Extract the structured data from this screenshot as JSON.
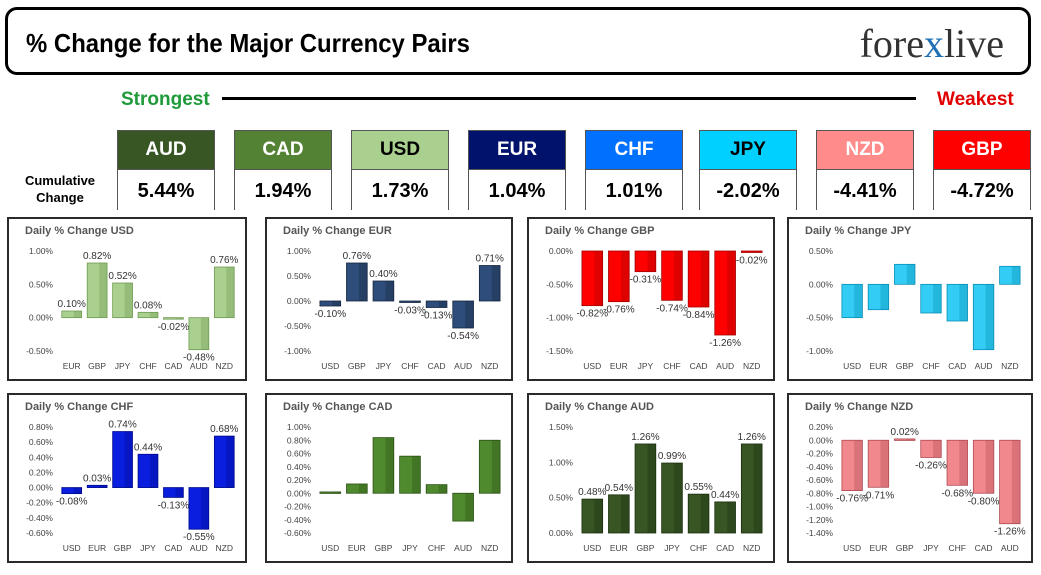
{
  "title": "% Change for the Major Currency Pairs",
  "logo": {
    "left": "fore",
    "x": "x",
    "right": "live"
  },
  "strength_scale": {
    "strongest": "Strongest",
    "weakest": "Weakest"
  },
  "cumulative_label": [
    "Cumulative",
    "Change"
  ],
  "currencies": [
    {
      "name": "AUD",
      "value": "5.44%",
      "color": "#375623",
      "text_color": "#ffffff"
    },
    {
      "name": "CAD",
      "value": "1.94%",
      "color": "#548235",
      "text_color": "#ffffff"
    },
    {
      "name": "USD",
      "value": "1.73%",
      "color": "#a9d08e",
      "text_color": "#000000"
    },
    {
      "name": "EUR",
      "value": "1.04%",
      "color": "#00126b",
      "text_color": "#ffffff"
    },
    {
      "name": "CHF",
      "value": "1.01%",
      "color": "#0070ff",
      "text_color": "#ffffff"
    },
    {
      "name": "JPY",
      "value": "-2.02%",
      "color": "#00d0ff",
      "text_color": "#000000"
    },
    {
      "name": "NZD",
      "value": "-4.41%",
      "color": "#ff8b8b",
      "text_color": "#ffffff"
    },
    {
      "name": "GBP",
      "value": "-4.72%",
      "color": "#ff0000",
      "text_color": "#ffffff"
    }
  ],
  "chart_data": [
    {
      "type": "bar",
      "title": "Daily % Change USD",
      "categories": [
        "EUR",
        "GBP",
        "JPY",
        "CHF",
        "CAD",
        "AUD",
        "NZD"
      ],
      "values": [
        0.1,
        0.82,
        0.52,
        0.08,
        -0.02,
        -0.48,
        0.76
      ],
      "labels": [
        "0.10%",
        "0.82%",
        "0.52%",
        "0.08%",
        "-0.02%",
        "-0.48%",
        "0.76%"
      ],
      "yticks": [
        1.0,
        0.5,
        0.0,
        -0.5
      ],
      "ytick_labels": [
        "1.00%",
        "0.50%",
        "0.00%",
        "-0.50%"
      ],
      "ylim": [
        -0.5,
        1.0
      ],
      "color": "#a9d08e",
      "color_dark": "#6f9a52",
      "data_labels": true
    },
    {
      "type": "bar",
      "title": "Daily % Change EUR",
      "categories": [
        "USD",
        "GBP",
        "JPY",
        "CHF",
        "CAD",
        "AUD",
        "NZD"
      ],
      "values": [
        -0.1,
        0.76,
        0.4,
        -0.03,
        -0.13,
        -0.54,
        0.71
      ],
      "labels": [
        "-0.10%",
        "0.76%",
        "0.40%",
        "-0.03%",
        "-0.13%",
        "-0.54%",
        "0.71%"
      ],
      "yticks": [
        1.0,
        0.5,
        0.0,
        -0.5,
        -1.0
      ],
      "ytick_labels": [
        "1.00%",
        "0.50%",
        "0.00%",
        "-0.50%",
        "-1.00%"
      ],
      "ylim": [
        -1.0,
        1.0
      ],
      "color": "#2e4d7a",
      "color_dark": "#142640",
      "data_labels": true
    },
    {
      "type": "bar",
      "title": "Daily % Change GBP",
      "categories": [
        "USD",
        "EUR",
        "JPY",
        "CHF",
        "CAD",
        "AUD",
        "NZD"
      ],
      "values": [
        -0.82,
        -0.76,
        -0.31,
        -0.74,
        -0.84,
        -1.26,
        -0.02
      ],
      "labels": [
        "-0.82%",
        "-0.76%",
        "-0.31%",
        "-0.74%",
        "-0.84%",
        "-1.26%",
        "-0.02%"
      ],
      "yticks": [
        0.0,
        -0.5,
        -1.0,
        -1.5
      ],
      "ytick_labels": [
        "0.00%",
        "-0.50%",
        "-1.00%",
        "-1.50%"
      ],
      "ylim": [
        -1.5,
        0.0
      ],
      "color": "#ff0000",
      "color_dark": "#a30000",
      "data_labels": true
    },
    {
      "type": "bar",
      "title": "Daily % Change JPY",
      "categories": [
        "USD",
        "EUR",
        "GBP",
        "CHF",
        "CAD",
        "AUD",
        "NZD"
      ],
      "values": [
        -0.5,
        -0.38,
        0.3,
        -0.43,
        -0.55,
        -0.98,
        0.27
      ],
      "labels": [],
      "yticks": [
        0.5,
        0.0,
        -0.5,
        -1.0
      ],
      "ytick_labels": [
        "0.50%",
        "0.00%",
        "-0.50%",
        "-1.00%"
      ],
      "ylim": [
        -1.0,
        0.5
      ],
      "color": "#33ccf5",
      "color_dark": "#0a8fb5",
      "data_labels": false
    },
    {
      "type": "bar",
      "title": "Daily % Change CHF",
      "categories": [
        "USD",
        "EUR",
        "GBP",
        "JPY",
        "CAD",
        "AUD",
        "NZD"
      ],
      "values": [
        -0.08,
        0.03,
        0.74,
        0.44,
        -0.13,
        -0.55,
        0.68
      ],
      "labels": [
        "-0.08%",
        "0.03%",
        "0.74%",
        "0.44%",
        "-0.13%",
        "-0.55%",
        "0.68%"
      ],
      "yticks": [
        0.8,
        0.6,
        0.4,
        0.2,
        0.0,
        -0.2,
        -0.4,
        -0.6
      ],
      "ytick_labels": [
        "0.80%",
        "0.60%",
        "0.40%",
        "0.20%",
        "0.00%",
        "-0.20%",
        "-0.40%",
        "-0.60%"
      ],
      "ylim": [
        -0.6,
        0.8
      ],
      "color": "#0a1ee0",
      "color_dark": "#000a8a",
      "data_labels": true
    },
    {
      "type": "bar",
      "title": "Daily % Change CAD",
      "categories": [
        "USD",
        "EUR",
        "GBP",
        "JPY",
        "CHF",
        "AUD",
        "NZD"
      ],
      "values": [
        0.02,
        0.14,
        0.84,
        0.56,
        0.13,
        -0.42,
        0.8
      ],
      "labels": [],
      "yticks": [
        1.0,
        0.8,
        0.6,
        0.4,
        0.2,
        0.0,
        -0.2,
        -0.4,
        -0.6
      ],
      "ytick_labels": [
        "1.00%",
        "0.80%",
        "0.60%",
        "0.40%",
        "0.20%",
        "0.00%",
        "-0.20%",
        "-0.40%",
        "-0.60%"
      ],
      "ylim": [
        -0.6,
        1.0
      ],
      "color": "#4f8a2f",
      "color_dark": "#2a5014",
      "data_labels": false
    },
    {
      "type": "bar",
      "title": "Daily % Change AUD",
      "categories": [
        "USD",
        "EUR",
        "GBP",
        "JPY",
        "CHF",
        "CAD",
        "NZD"
      ],
      "values": [
        0.48,
        0.54,
        1.26,
        0.99,
        0.55,
        0.44,
        1.26
      ],
      "labels": [
        "0.48%",
        "0.54%",
        "1.26%",
        "0.99%",
        "0.55%",
        "0.44%",
        "1.26%"
      ],
      "yticks": [
        1.5,
        1.0,
        0.5,
        0.0
      ],
      "ytick_labels": [
        "1.50%",
        "1.00%",
        "0.50%",
        "0.00%"
      ],
      "ylim": [
        0.0,
        1.5
      ],
      "color": "#375623",
      "color_dark": "#1c2f10",
      "data_labels": true
    },
    {
      "type": "bar",
      "title": "Daily % Change NZD",
      "categories": [
        "USD",
        "EUR",
        "GBP",
        "JPY",
        "CHF",
        "CAD",
        "AUD"
      ],
      "values": [
        -0.76,
        -0.71,
        0.02,
        -0.26,
        -0.68,
        -0.8,
        -1.26
      ],
      "labels": [
        "-0.76%",
        "-0.71%",
        "0.02%",
        "-0.26%",
        "-0.68%",
        "-0.80%",
        "-1.26%"
      ],
      "yticks": [
        0.2,
        0.0,
        -0.2,
        -0.4,
        -0.6,
        -0.8,
        -1.0,
        -1.2,
        -1.4
      ],
      "ytick_labels": [
        "0.20%",
        "0.00%",
        "-0.20%",
        "-0.40%",
        "-0.60%",
        "-0.80%",
        "-1.00%",
        "-1.20%",
        "-1.40%"
      ],
      "ylim": [
        -1.4,
        0.2
      ],
      "color": "#f0888e",
      "color_dark": "#b04a52",
      "data_labels": true
    }
  ]
}
